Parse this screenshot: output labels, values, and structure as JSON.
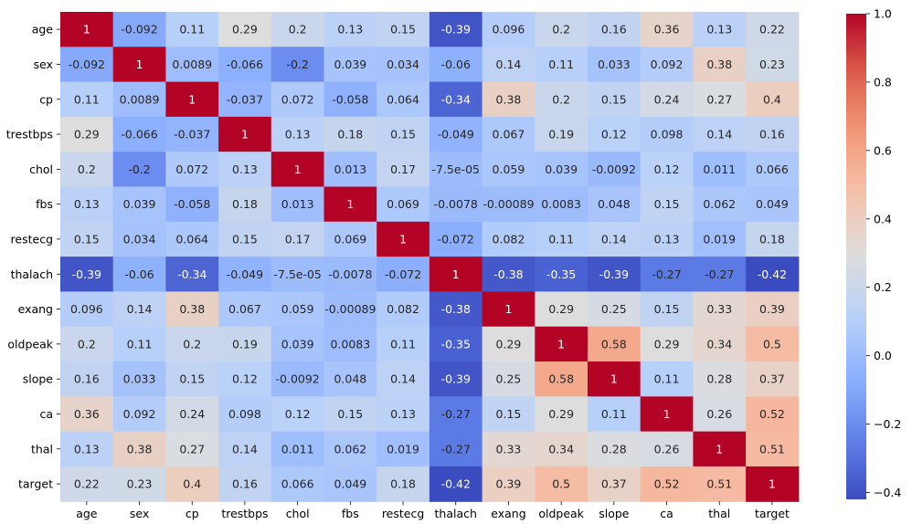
{
  "chart_data": {
    "type": "heatmap",
    "title": "",
    "xlabel": "",
    "ylabel": "",
    "labels": [
      "age",
      "sex",
      "cp",
      "trestbps",
      "chol",
      "fbs",
      "restecg",
      "thalach",
      "exang",
      "oldpeak",
      "slope",
      "ca",
      "thal",
      "target"
    ],
    "matrix": [
      [
        "1",
        "-0.092",
        "0.11",
        "0.29",
        "0.2",
        "0.13",
        "0.15",
        "-0.39",
        "0.096",
        "0.2",
        "0.16",
        "0.36",
        "0.13",
        "0.22"
      ],
      [
        "-0.092",
        "1",
        "0.0089",
        "-0.066",
        "-0.2",
        "0.039",
        "0.034",
        "-0.06",
        "0.14",
        "0.11",
        "0.033",
        "0.092",
        "0.38",
        "0.23"
      ],
      [
        "0.11",
        "0.0089",
        "1",
        "-0.037",
        "0.072",
        "-0.058",
        "0.064",
        "-0.34",
        "0.38",
        "0.2",
        "0.15",
        "0.24",
        "0.27",
        "0.4"
      ],
      [
        "0.29",
        "-0.066",
        "-0.037",
        "1",
        "0.13",
        "0.18",
        "0.15",
        "-0.049",
        "0.067",
        "0.19",
        "0.12",
        "0.098",
        "0.14",
        "0.16"
      ],
      [
        "0.2",
        "-0.2",
        "0.072",
        "0.13",
        "1",
        "0.013",
        "0.17",
        "-7.5e-05",
        "0.059",
        "0.039",
        "-0.0092",
        "0.12",
        "0.011",
        "0.066"
      ],
      [
        "0.13",
        "0.039",
        "-0.058",
        "0.18",
        "0.013",
        "1",
        "0.069",
        "-0.0078",
        "-0.00089",
        "0.0083",
        "0.048",
        "0.15",
        "0.062",
        "0.049"
      ],
      [
        "0.15",
        "0.034",
        "0.064",
        "0.15",
        "0.17",
        "0.069",
        "1",
        "-0.072",
        "0.082",
        "0.11",
        "0.14",
        "0.13",
        "0.019",
        "0.18"
      ],
      [
        "-0.39",
        "-0.06",
        "-0.34",
        "-0.049",
        "-7.5e-05",
        "-0.0078",
        "-0.072",
        "1",
        "-0.38",
        "-0.35",
        "-0.39",
        "-0.27",
        "-0.27",
        "-0.42"
      ],
      [
        "0.096",
        "0.14",
        "0.38",
        "0.067",
        "0.059",
        "-0.00089",
        "0.082",
        "-0.38",
        "1",
        "0.29",
        "0.25",
        "0.15",
        "0.33",
        "0.39"
      ],
      [
        "0.2",
        "0.11",
        "0.2",
        "0.19",
        "0.039",
        "0.0083",
        "0.11",
        "-0.35",
        "0.29",
        "1",
        "0.58",
        "0.29",
        "0.34",
        "0.5"
      ],
      [
        "0.16",
        "0.033",
        "0.15",
        "0.12",
        "-0.0092",
        "0.048",
        "0.14",
        "-0.39",
        "0.25",
        "0.58",
        "1",
        "0.11",
        "0.28",
        "0.37"
      ],
      [
        "0.36",
        "0.092",
        "0.24",
        "0.098",
        "0.12",
        "0.15",
        "0.13",
        "-0.27",
        "0.15",
        "0.29",
        "0.11",
        "1",
        "0.26",
        "0.52"
      ],
      [
        "0.13",
        "0.38",
        "0.27",
        "0.14",
        "0.011",
        "0.062",
        "0.019",
        "-0.27",
        "0.33",
        "0.34",
        "0.28",
        "0.26",
        "1",
        "0.51"
      ],
      [
        "0.22",
        "0.23",
        "0.4",
        "0.16",
        "0.066",
        "0.049",
        "0.18",
        "-0.42",
        "0.39",
        "0.5",
        "0.37",
        "0.52",
        "0.51",
        "1"
      ]
    ],
    "colormap": "coolwarm",
    "vmin": -0.42,
    "vmax": 1.0,
    "colorbar_ticks": [
      "1.0",
      "0.8",
      "0.6",
      "0.4",
      "0.2",
      "0.0",
      "−0.2",
      "−0.4"
    ],
    "colorbar_tick_values": [
      1.0,
      0.8,
      0.6,
      0.4,
      0.2,
      0.0,
      -0.2,
      -0.4
    ]
  }
}
